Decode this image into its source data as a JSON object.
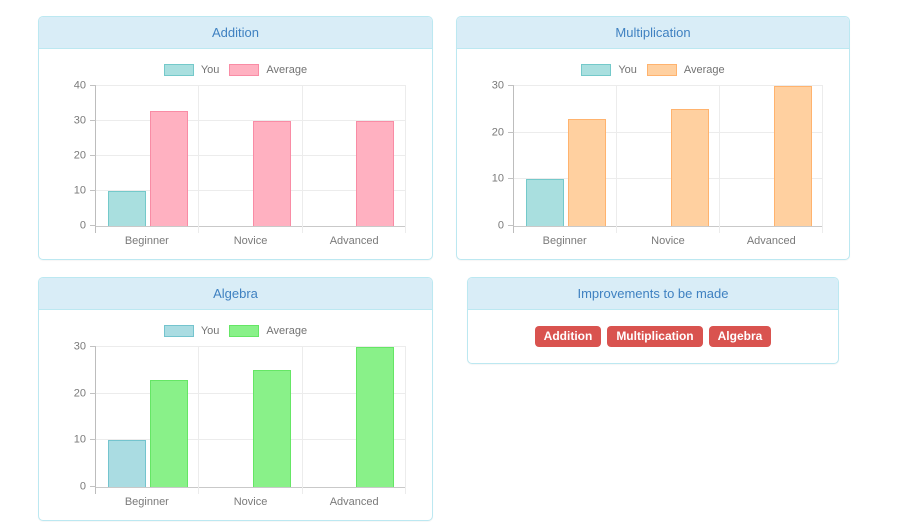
{
  "ui_colors": {
    "panel_border": "#bce8f1",
    "panel_heading_bg": "#d9edf7",
    "panel_heading_text": "#3f81c1",
    "badge_bg": "#d9534f",
    "badge_text": "#ffffff",
    "grid_line": "#ececec",
    "axis_line": "#bdbdbd",
    "tick_label": "#7a7a7a"
  },
  "chart_data": [
    {
      "type": "bar",
      "title": "Addition",
      "categories": [
        "Beginner",
        "Novice",
        "Advanced"
      ],
      "series": [
        {
          "name": "You",
          "values": [
            10,
            0,
            0
          ],
          "fill": "#a9dfdf",
          "border": "#74c9ca"
        },
        {
          "name": "Average",
          "values": [
            33,
            30,
            30
          ],
          "fill": "#ffb1c1",
          "border": "#f98ca5"
        }
      ],
      "xlabel": "",
      "ylabel": "",
      "ylim": [
        0,
        40
      ],
      "ytick_step": 10,
      "grid": true,
      "legend_position": "top"
    },
    {
      "type": "bar",
      "title": "Multiplication",
      "categories": [
        "Beginner",
        "Novice",
        "Advanced"
      ],
      "series": [
        {
          "name": "You",
          "values": [
            10,
            0,
            0
          ],
          "fill": "#a9dfdf",
          "border": "#74c9ca"
        },
        {
          "name": "Average",
          "values": [
            23,
            25,
            30
          ],
          "fill": "#ffd0a0",
          "border": "#ffb36e"
        }
      ],
      "xlabel": "",
      "ylabel": "",
      "ylim": [
        0,
        30
      ],
      "ytick_step": 10,
      "grid": true,
      "legend_position": "top"
    },
    {
      "type": "bar",
      "title": "Algebra",
      "categories": [
        "Beginner",
        "Novice",
        "Advanced"
      ],
      "series": [
        {
          "name": "You",
          "values": [
            10,
            0,
            0
          ],
          "fill": "#aadce2",
          "border": "#74c4ce"
        },
        {
          "name": "Average",
          "values": [
            23,
            25,
            30
          ],
          "fill": "#89f189",
          "border": "#65e665"
        }
      ],
      "xlabel": "",
      "ylabel": "",
      "ylim": [
        0,
        30
      ],
      "ytick_step": 10,
      "grid": true,
      "legend_position": "top"
    }
  ],
  "improvements": {
    "title": "Improvements to be made",
    "badges": [
      "Addition",
      "Multiplication",
      "Algebra"
    ]
  }
}
